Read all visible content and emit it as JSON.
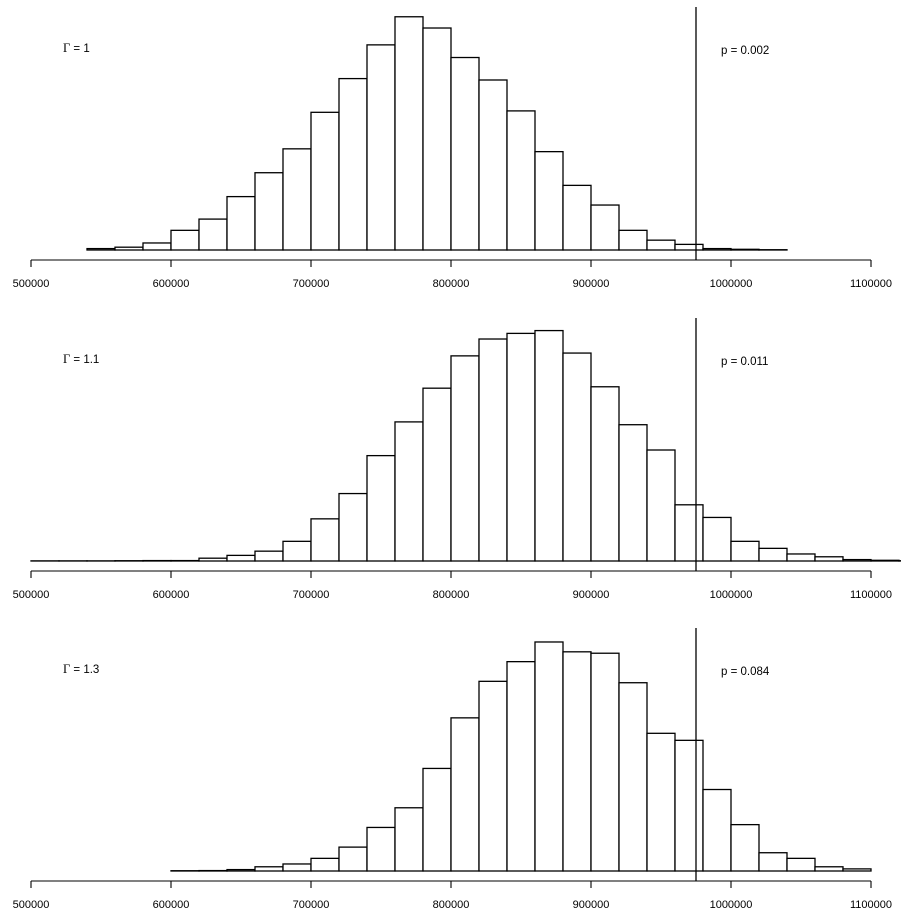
{
  "chart_data": [
    {
      "type": "histogram",
      "xlim": [
        500000,
        1100000
      ],
      "x_ticks": [
        500000,
        600000,
        700000,
        800000,
        900000,
        1000000,
        1100000
      ],
      "tick_labels": [
        "500000",
        "600000",
        "700000",
        "800000",
        "900000",
        "1000000",
        "1100000"
      ],
      "bin_width": 20000,
      "bin_start": 540000,
      "counts": [
        1,
        2,
        5,
        14,
        22,
        38,
        55,
        72,
        98,
        122,
        146,
        166,
        158,
        137,
        121,
        99,
        70,
        46,
        32,
        14,
        7,
        4,
        1,
        0.5,
        0.2
      ],
      "observed_line_x": 975000,
      "gamma_label": "Γ",
      "gamma_value": "1",
      "p_label": "p =",
      "p_value": "0.002"
    },
    {
      "type": "histogram",
      "xlim": [
        500000,
        1100000
      ],
      "x_ticks": [
        500000,
        600000,
        700000,
        800000,
        900000,
        1000000,
        1100000
      ],
      "tick_labels": [
        "500000",
        "600000",
        "700000",
        "800000",
        "900000",
        "1000000",
        "1100000"
      ],
      "bin_width": 20000,
      "bin_start": 500000,
      "counts": [
        0.1,
        0.1,
        0.1,
        0.2,
        0.3,
        0.3,
        2,
        4,
        7,
        14,
        30,
        48,
        75,
        99,
        123,
        146,
        158,
        162,
        164,
        148,
        124,
        97,
        79,
        40,
        31,
        14,
        9,
        5,
        3,
        1,
        0.5,
        0.2
      ],
      "observed_line_x": 975000,
      "gamma_label": "Γ",
      "gamma_value": "1.1",
      "p_label": "p =",
      "p_value": "0.011"
    },
    {
      "type": "histogram",
      "xlim": [
        500000,
        1100000
      ],
      "x_ticks": [
        500000,
        600000,
        700000,
        800000,
        900000,
        1000000,
        1100000
      ],
      "tick_labels": [
        "500000",
        "600000",
        "700000",
        "800000",
        "900000",
        "1000000",
        "1100000"
      ],
      "bin_width": 20000,
      "bin_start": 600000,
      "counts": [
        0.2,
        0.3,
        1,
        3,
        5,
        9,
        17,
        31,
        45,
        73,
        109,
        135,
        149,
        163,
        156,
        155,
        134,
        98,
        93,
        58,
        33,
        13,
        9,
        3,
        1.5
      ],
      "observed_line_x": 975000,
      "gamma_label": "Γ",
      "gamma_value": "1.3",
      "p_label": "p =",
      "p_value": "0.084"
    }
  ]
}
